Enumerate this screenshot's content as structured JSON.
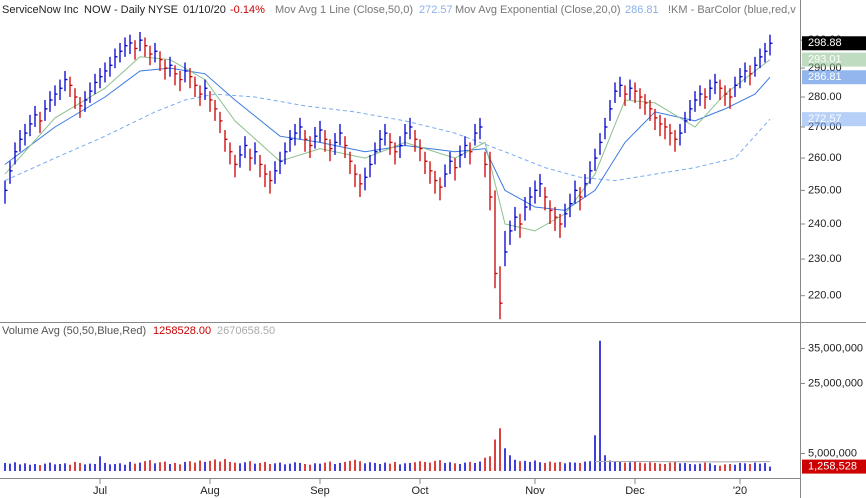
{
  "chart_data": [
    {
      "type": "ohlc",
      "title": "ServiceNow Inc",
      "subtitle": "NOW - Daily",
      "exchange": "NYSE",
      "date": "01/10/20",
      "change": {
        "value": -0.14,
        "label": "-0.14%"
      },
      "indicator": "!KM - BarColor (blue,red,v",
      "up_color": "#0000cc",
      "down_color": "#cc0000",
      "log_scale": true,
      "xlim": [
        -1,
        159
      ],
      "xticks": [
        {
          "value": 19,
          "label": "Jul"
        },
        {
          "value": 41,
          "label": "Aug"
        },
        {
          "value": 63,
          "label": "Sep"
        },
        {
          "value": 83,
          "label": "Oct"
        },
        {
          "value": 106,
          "label": "Nov"
        },
        {
          "value": 126,
          "label": "Dec"
        },
        {
          "value": 147,
          "label": "'20"
        }
      ],
      "ylim": [
        213.6,
        315
      ],
      "yticks": [
        {
          "value": 220,
          "label": "220.00"
        },
        {
          "value": 230,
          "label": "230.00"
        },
        {
          "value": 240,
          "label": "240.00"
        },
        {
          "value": 250,
          "label": "250.00"
        },
        {
          "value": 260,
          "label": "260.00"
        },
        {
          "value": 270,
          "label": "270.00"
        },
        {
          "value": 280,
          "label": "280.00"
        },
        {
          "value": 290,
          "label": "290.00"
        },
        {
          "value": 300,
          "label": "300.00"
        }
      ],
      "high": [
        253,
        259,
        265,
        269,
        271,
        274,
        277,
        275,
        279,
        282,
        284,
        286,
        289,
        287,
        283,
        280,
        282,
        285,
        288,
        290,
        292,
        294,
        297,
        299,
        301,
        302,
        300,
        303,
        301,
        298,
        299,
        296,
        293,
        294,
        291,
        289,
        292,
        290,
        287,
        284,
        286,
        282,
        279,
        275,
        269,
        265,
        261,
        264,
        267,
        263,
        265,
        261,
        258,
        256,
        259,
        262,
        265,
        269,
        271,
        273,
        269,
        267,
        270,
        272,
        269,
        266,
        268,
        271,
        267,
        262,
        258,
        255,
        257,
        261,
        265,
        269,
        271,
        268,
        265,
        267,
        271,
        273,
        269,
        266,
        262,
        259,
        256,
        254,
        258,
        262,
        260,
        264,
        267,
        265,
        271,
        273,
        262,
        262,
        250,
        228,
        238,
        241,
        245,
        243,
        248,
        251,
        253,
        255,
        251,
        247,
        245,
        243,
        246,
        249,
        253,
        251,
        255,
        259,
        263,
        268,
        273,
        279,
        285,
        287,
        284,
        286,
        285,
        283,
        281,
        279,
        276,
        274,
        273,
        271,
        269,
        271,
        275,
        279,
        282,
        284,
        283,
        286,
        288,
        286,
        284,
        283,
        287,
        290,
        292,
        291,
        294,
        297,
        299,
        302
      ],
      "low": [
        246,
        252,
        258,
        262,
        264,
        267,
        270,
        268,
        272,
        275,
        277,
        279,
        282,
        280,
        276,
        273,
        275,
        278,
        281,
        283,
        285,
        287,
        290,
        292,
        294,
        295,
        293,
        296,
        294,
        291,
        292,
        289,
        286,
        287,
        284,
        282,
        285,
        283,
        280,
        277,
        279,
        275,
        272,
        268,
        262,
        258,
        254,
        257,
        260,
        256,
        258,
        254,
        251,
        249,
        252,
        255,
        258,
        262,
        264,
        266,
        262,
        260,
        263,
        265,
        262,
        259,
        261,
        264,
        260,
        255,
        251,
        248,
        250,
        254,
        258,
        262,
        264,
        261,
        258,
        260,
        264,
        266,
        262,
        259,
        255,
        252,
        249,
        247,
        251,
        255,
        253,
        257,
        260,
        258,
        264,
        266,
        254,
        244,
        222,
        213.8,
        228,
        234,
        238,
        236,
        241,
        244,
        246,
        248,
        244,
        240,
        238,
        236,
        239,
        242,
        246,
        244,
        248,
        252,
        256,
        261,
        266,
        272,
        278,
        280,
        277,
        279,
        278,
        276,
        274,
        272,
        269,
        267,
        266,
        264,
        262,
        264,
        268,
        272,
        275,
        277,
        276,
        279,
        281,
        279,
        277,
        276,
        280,
        283,
        285,
        284,
        287,
        290,
        292,
        294.5
      ],
      "close": [
        250,
        256,
        262,
        266,
        268,
        271,
        274,
        272,
        276,
        279,
        281,
        283,
        286,
        284,
        280,
        277,
        279,
        282,
        285,
        287,
        289,
        291,
        294,
        296,
        298,
        299,
        297,
        300,
        298,
        295,
        296,
        293,
        290,
        291,
        288,
        286,
        289,
        287,
        284,
        281,
        283,
        279,
        276,
        272,
        266,
        262,
        258,
        261,
        264,
        260,
        262,
        258,
        255,
        253,
        256,
        259,
        262,
        266,
        268,
        270,
        266,
        264,
        267,
        269,
        266,
        263,
        265,
        268,
        264,
        259,
        255,
        252,
        254,
        258,
        262,
        266,
        268,
        265,
        262,
        264,
        268,
        270,
        266,
        263,
        259,
        256,
        253,
        251,
        255,
        259,
        257,
        261,
        264,
        262,
        268,
        270,
        258,
        248,
        226,
        218,
        232,
        238,
        242,
        240,
        245,
        248,
        250,
        252,
        248,
        244,
        242,
        240,
        243,
        246,
        250,
        248,
        252,
        256,
        260,
        265,
        270,
        276,
        282,
        284,
        281,
        283,
        282,
        280,
        278,
        276,
        273,
        271,
        270,
        268,
        266,
        268,
        272,
        276,
        279,
        281,
        280,
        283,
        285,
        283,
        281,
        280,
        284,
        287,
        289,
        288,
        291,
        294,
        296,
        298.88
      ],
      "series": [
        {
          "name": "Mov Avg 1 Line (Close,50,0)",
          "color": "#7aaaf0",
          "dash": true,
          "x": [
            0,
            10,
            20,
            30,
            36,
            42,
            50,
            60,
            70,
            80,
            90,
            100,
            108,
            115,
            122,
            130,
            138,
            146,
            153
          ],
          "values": [
            253,
            260,
            267,
            275,
            279,
            281,
            280,
            277,
            275,
            272,
            268,
            262,
            257,
            254,
            253,
            255,
            257,
            260,
            272.57
          ]
        },
        {
          "name": "Mov Avg Exponential (Close,20,0)",
          "color": "#3a7ae0",
          "dash": false,
          "x": [
            0,
            10,
            20,
            27,
            33,
            40,
            46,
            55,
            63,
            72,
            80,
            90,
            96,
            100,
            106,
            112,
            118,
            124,
            130,
            138,
            144,
            150,
            153
          ],
          "values": [
            258,
            270,
            280,
            289,
            290,
            288,
            279,
            267,
            265,
            262,
            264,
            262,
            263,
            250,
            245,
            244,
            250,
            265,
            275,
            272,
            276,
            281,
            286.81
          ]
        },
        {
          "color": "#8cc08c",
          "dash": false,
          "x": [
            0,
            10,
            20,
            27,
            33,
            40,
            46,
            55,
            63,
            72,
            80,
            90,
            96,
            100,
            106,
            112,
            118,
            124,
            130,
            138,
            144,
            150,
            153
          ],
          "values": [
            255,
            273,
            283,
            294,
            293,
            286,
            272,
            259,
            263,
            260,
            265,
            260,
            265,
            240,
            238,
            243,
            255,
            279,
            278,
            270,
            281,
            289,
            293.01
          ]
        }
      ]
    },
    {
      "type": "volume",
      "title": "Volume Avg (50,50,Blue,Red)",
      "last_avg": {
        "value": 1258528,
        "label": "1258528.00"
      },
      "long_avg": {
        "value": 2670658.5,
        "label": "2670658.50"
      },
      "last_label": {
        "value": 1258528,
        "label": "1,258,528"
      },
      "ylim": [
        0,
        41700000
      ],
      "yticks": [
        {
          "value": 5000000,
          "label": "5,000,000"
        },
        {
          "value": 25000000,
          "label": "25,000,000"
        },
        {
          "value": 35000000,
          "label": "35,000,000"
        }
      ],
      "values": [
        2300000,
        2100000,
        2500000,
        1900000,
        2200000,
        1800000,
        2000000,
        1700000,
        2100000,
        2400000,
        1900000,
        2000000,
        2200000,
        1800000,
        2600000,
        2300000,
        1900000,
        2100000,
        2000000,
        4200000,
        2300000,
        1900000,
        2000000,
        2200000,
        1800000,
        2600000,
        2100000,
        2400000,
        2800000,
        3100000,
        2200000,
        2500000,
        2700000,
        2000000,
        2300000,
        1900000,
        2600000,
        2800000,
        2400000,
        3000000,
        2600000,
        2900000,
        3300000,
        2700000,
        3400000,
        2600000,
        2400000,
        2200000,
        2500000,
        2800000,
        2100000,
        2300000,
        2600000,
        2000000,
        2200000,
        2400000,
        1900000,
        2100000,
        2500000,
        2300000,
        2000000,
        1800000,
        2200000,
        2100000,
        2400000,
        2700000,
        2000000,
        2300000,
        2600000,
        2900000,
        3200000,
        2800000,
        2200000,
        2500000,
        2300000,
        2000000,
        2400000,
        2100000,
        2600000,
        1900000,
        2200000,
        2300000,
        2500000,
        2800000,
        2600000,
        2400000,
        2900000,
        3100000,
        2300000,
        2500000,
        2200000,
        2000000,
        2400000,
        2600000,
        2300000,
        2700000,
        3800000,
        4200000,
        9000000,
        12200000,
        6500000,
        4500000,
        3200000,
        2800000,
        2900000,
        2600000,
        3000000,
        2500000,
        2300000,
        2700000,
        2400000,
        2600000,
        2200000,
        2500000,
        2400000,
        2300000,
        2700000,
        2800000,
        10200000,
        37200000,
        4500000,
        3000000,
        2800000,
        2600000,
        2400000,
        2500000,
        2600000,
        2400000,
        2200000,
        2500000,
        2300000,
        2100000,
        2000000,
        2400000,
        2600000,
        2200000,
        2300000,
        2000000,
        1900000,
        2100000,
        2400000,
        2200000,
        1700000,
        1500000,
        1900000,
        2000000,
        1800000,
        2300000,
        2200000,
        2000000,
        2400000,
        2100000,
        2300000,
        1258528
      ],
      "avg": {
        "color": "#aaaaaa",
        "x": [
          118,
          125,
          135,
          145,
          153
        ],
        "values": [
          2700000,
          2700000,
          2650000,
          2600000,
          2670658.5
        ]
      }
    }
  ]
}
